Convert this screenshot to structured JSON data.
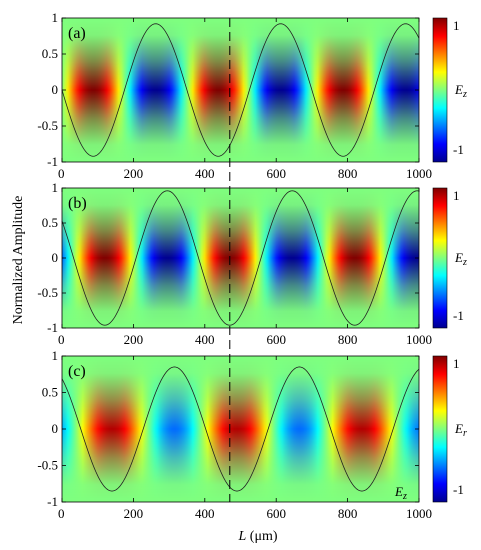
{
  "figure": {
    "ylabel": "Normalized Amplitude",
    "xlabel_italic": "L",
    "xlabel_unit": " (μm)",
    "marker_line_x": 470
  },
  "colormap": {
    "stops": [
      [
        0.0,
        "#00008f"
      ],
      [
        0.125,
        "#0000ff"
      ],
      [
        0.375,
        "#00ffff"
      ],
      [
        0.5,
        "#7fff7f"
      ],
      [
        0.625,
        "#ffff00"
      ],
      [
        0.875,
        "#ff0000"
      ],
      [
        1.0,
        "#800000"
      ]
    ]
  },
  "chart_data": [
    {
      "type": "heatmap",
      "panel_label": "(a)",
      "x_range": [
        0,
        1000
      ],
      "ylim": [
        -1,
        1
      ],
      "x_ticks": [
        "0",
        "200",
        "400",
        "600",
        "800",
        "1000"
      ],
      "y_ticks": [
        "1",
        "0.5",
        "0",
        "-0.5",
        "-1"
      ],
      "colorbar_label": "E",
      "colorbar_sub": "z",
      "colorbar_ticks": [
        "1",
        "-1"
      ],
      "corner_label": "",
      "corner_sub": "",
      "field": {
        "period": 350,
        "phase": 87.5,
        "amplitude": 1.0,
        "offset": 0.0
      },
      "curve": {
        "period": 350,
        "phase": 87.5,
        "amplitude": 0.92
      }
    },
    {
      "type": "heatmap",
      "panel_label": "(b)",
      "x_range": [
        0,
        1000
      ],
      "ylim": [
        -1,
        1
      ],
      "x_ticks": [
        "0",
        "200",
        "400",
        "600",
        "800",
        "1000"
      ],
      "y_ticks": [
        "1",
        "0.5",
        "0",
        "-0.5",
        "-1"
      ],
      "colorbar_label": "E",
      "colorbar_sub": "z",
      "colorbar_ticks": [
        "1",
        "-1"
      ],
      "corner_label": "",
      "corner_sub": "",
      "field": {
        "period": 350,
        "phase": 120,
        "amplitude": 1.0,
        "offset": 0.0
      },
      "curve": {
        "period": 350,
        "phase": 120,
        "amplitude": 0.96
      }
    },
    {
      "type": "heatmap",
      "panel_label": "(c)",
      "x_range": [
        0,
        1000
      ],
      "ylim": [
        -1,
        1
      ],
      "x_ticks": [
        "0",
        "200",
        "400",
        "600",
        "800",
        "1000"
      ],
      "y_ticks": [
        "1",
        "0.5",
        "0",
        "-0.5",
        "-1"
      ],
      "colorbar_label": "E",
      "colorbar_sub": "r",
      "colorbar_ticks": [
        "1",
        "-1"
      ],
      "corner_label": "E",
      "corner_sub": "z",
      "field": {
        "period": 350,
        "phase": 140,
        "amplitude": 0.72,
        "offset": 0.18
      },
      "curve": {
        "period": 350,
        "phase": 140,
        "amplitude": 0.85
      }
    }
  ]
}
